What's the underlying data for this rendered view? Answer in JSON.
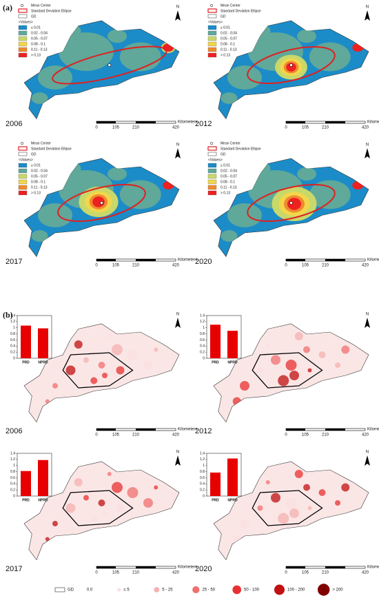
{
  "panel_a": {
    "label": "(a)",
    "legend": {
      "mean_center": "Mean Center",
      "ellipse": "Standard Deviation Ellipse",
      "boundary": "GD",
      "values_title": "<Values>",
      "classes": [
        {
          "label": "≤ 0.01",
          "color": "#1b8cc8"
        },
        {
          "label": "0.02 - 0.04",
          "color": "#5fa89a"
        },
        {
          "label": "0.05 - 0.07",
          "color": "#c8d86a"
        },
        {
          "label": "0.08 - 0.1",
          "color": "#f2d64b"
        },
        {
          "label": "0.11 - 0.13",
          "color": "#f08a30"
        },
        {
          "label": "> 0.13",
          "color": "#ee2020"
        }
      ]
    },
    "maps": [
      {
        "year": "2006"
      },
      {
        "year": "2012"
      },
      {
        "year": "2017"
      },
      {
        "year": "2020"
      }
    ]
  },
  "panel_b": {
    "label": "(b)",
    "maps": [
      {
        "year": "2006",
        "chart": {
          "type": "bar",
          "categories": [
            "PRD",
            "NPRD"
          ],
          "values": [
            1.07,
            0.98
          ],
          "color": "#e80000",
          "ylim": [
            0,
            1.4
          ],
          "yticks": [
            0,
            0.2,
            0.4,
            0.6,
            0.8,
            1,
            1.2,
            1.4
          ]
        }
      },
      {
        "year": "2012",
        "chart": {
          "type": "bar",
          "categories": [
            "PRD",
            "NPRD"
          ],
          "values": [
            1.1,
            0.9
          ],
          "color": "#e80000",
          "ylim": [
            0,
            1.4
          ],
          "yticks": [
            0,
            0.2,
            0.4,
            0.6,
            0.8,
            1,
            1.2,
            1.4
          ]
        }
      },
      {
        "year": "2017",
        "chart": {
          "type": "bar",
          "categories": [
            "PRD",
            "NPRD"
          ],
          "values": [
            0.82,
            1.18
          ],
          "color": "#e80000",
          "ylim": [
            0,
            1.4
          ],
          "yticks": [
            0,
            0.2,
            0.4,
            0.6,
            0.8,
            1,
            1.2,
            1.4
          ]
        }
      },
      {
        "year": "2020",
        "chart": {
          "type": "bar",
          "categories": [
            "PRD",
            "NPRD"
          ],
          "values": [
            0.77,
            1.23
          ],
          "color": "#e80000",
          "ylim": [
            0,
            1.4
          ],
          "yticks": [
            0,
            0.2,
            0.4,
            0.6,
            0.8,
            1,
            1.2,
            1.4
          ]
        }
      }
    ],
    "legend": {
      "boundary": "GD",
      "classes": [
        {
          "label": "0.0",
          "color": "#ffffff"
        },
        {
          "label": "≤ 5",
          "color": "#fbe0e0"
        },
        {
          "label": "5 - 25",
          "color": "#f6b0b0"
        },
        {
          "label": "25 - 50",
          "color": "#f07070"
        },
        {
          "label": "50 - 100",
          "color": "#e83030"
        },
        {
          "label": "100 - 200",
          "color": "#c01010"
        },
        {
          "label": "> 200",
          "color": "#800000"
        }
      ]
    }
  },
  "scale_bar": {
    "ticks": [
      "0",
      "105",
      "210",
      "420"
    ],
    "unit": "Kilometers"
  },
  "north": "N"
}
